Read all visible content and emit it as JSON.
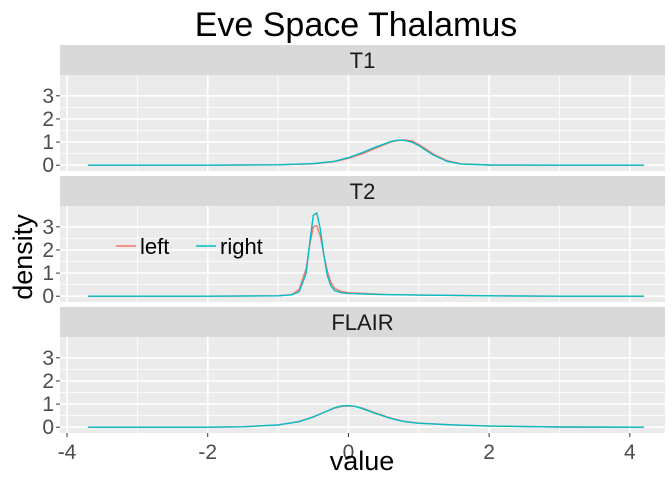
{
  "chart_data": {
    "type": "line",
    "title": "Eve Space Thalamus",
    "xlabel": "value",
    "ylabel": "density",
    "xlim": [
      -4.1,
      4.5
    ],
    "ylim": [
      -0.25,
      3.9
    ],
    "x_ticks": [
      -4,
      -2,
      0,
      2,
      4
    ],
    "x_tick_labels": [
      "-4",
      "-2",
      "0",
      "2",
      "4"
    ],
    "y_ticks": [
      0,
      1,
      2,
      3
    ],
    "y_tick_labels": [
      "0",
      "1",
      "2",
      "3"
    ],
    "grid": true,
    "legend": {
      "placement": "inside-left-of-T2-panel",
      "entries": [
        "left",
        "right"
      ]
    },
    "colors": {
      "left": "#F8766D",
      "right": "#00BFC4",
      "panel_bg": "#EBEBEB",
      "strip_bg": "#D9D9D9",
      "grid": "#FFFFFF"
    },
    "panels": [
      {
        "label": "T1",
        "series": [
          {
            "name": "left",
            "x": [
              -3.7,
              -2.0,
              -1.0,
              -0.5,
              -0.2,
              0.0,
              0.2,
              0.4,
              0.6,
              0.7,
              0.8,
              0.9,
              1.0,
              1.1,
              1.2,
              1.4,
              1.6,
              2.0,
              3.0,
              4.2
            ],
            "y": [
              0,
              0,
              0.02,
              0.06,
              0.15,
              0.3,
              0.5,
              0.75,
              1.0,
              1.07,
              1.1,
              1.05,
              0.9,
              0.7,
              0.5,
              0.2,
              0.06,
              0.01,
              0,
              0
            ]
          },
          {
            "name": "right",
            "x": [
              -3.7,
              -2.0,
              -1.0,
              -0.5,
              -0.2,
              0.0,
              0.2,
              0.4,
              0.6,
              0.7,
              0.8,
              0.9,
              1.0,
              1.1,
              1.2,
              1.4,
              1.6,
              2.0,
              3.0,
              4.2
            ],
            "y": [
              0,
              0,
              0.02,
              0.07,
              0.17,
              0.33,
              0.55,
              0.8,
              1.02,
              1.08,
              1.07,
              1.0,
              0.85,
              0.65,
              0.45,
              0.17,
              0.05,
              0.01,
              0,
              0
            ]
          }
        ]
      },
      {
        "label": "T2",
        "series": [
          {
            "name": "left",
            "x": [
              -3.7,
              -2.0,
              -1.0,
              -0.8,
              -0.7,
              -0.6,
              -0.55,
              -0.5,
              -0.45,
              -0.4,
              -0.35,
              -0.3,
              -0.25,
              -0.2,
              -0.1,
              0.0,
              0.5,
              1.0,
              2.0,
              3.0,
              4.2
            ],
            "y": [
              0,
              0,
              0.02,
              0.08,
              0.3,
              1.2,
              2.2,
              3.0,
              3.05,
              2.6,
              1.8,
              1.1,
              0.6,
              0.35,
              0.2,
              0.15,
              0.08,
              0.05,
              0.02,
              0,
              0
            ]
          },
          {
            "name": "right",
            "x": [
              -3.7,
              -2.0,
              -1.0,
              -0.8,
              -0.7,
              -0.6,
              -0.55,
              -0.5,
              -0.45,
              -0.4,
              -0.35,
              -0.3,
              -0.25,
              -0.2,
              -0.1,
              0.0,
              0.5,
              1.0,
              2.0,
              3.0,
              4.2
            ],
            "y": [
              0,
              0,
              0.02,
              0.06,
              0.2,
              1.0,
              2.3,
              3.5,
              3.6,
              2.9,
              1.8,
              0.9,
              0.45,
              0.25,
              0.15,
              0.12,
              0.07,
              0.05,
              0.02,
              0,
              0
            ]
          }
        ]
      },
      {
        "label": "FLAIR",
        "series": [
          {
            "name": "left",
            "x": [
              -3.7,
              -2.0,
              -1.5,
              -1.0,
              -0.7,
              -0.5,
              -0.3,
              -0.2,
              -0.1,
              0.0,
              0.1,
              0.2,
              0.4,
              0.6,
              0.8,
              1.0,
              1.5,
              2.0,
              3.0,
              4.2
            ],
            "y": [
              0,
              0,
              0.02,
              0.1,
              0.25,
              0.45,
              0.7,
              0.82,
              0.9,
              0.92,
              0.9,
              0.82,
              0.6,
              0.4,
              0.25,
              0.18,
              0.1,
              0.05,
              0.01,
              0
            ]
          },
          {
            "name": "right",
            "x": [
              -3.7,
              -2.0,
              -1.5,
              -1.0,
              -0.7,
              -0.5,
              -0.3,
              -0.2,
              -0.1,
              0.0,
              0.1,
              0.2,
              0.4,
              0.6,
              0.8,
              1.0,
              1.5,
              2.0,
              3.0,
              4.2
            ],
            "y": [
              0,
              0,
              0.02,
              0.1,
              0.24,
              0.44,
              0.7,
              0.84,
              0.92,
              0.93,
              0.9,
              0.8,
              0.58,
              0.38,
              0.24,
              0.17,
              0.1,
              0.05,
              0.01,
              0
            ]
          }
        ]
      }
    ]
  }
}
